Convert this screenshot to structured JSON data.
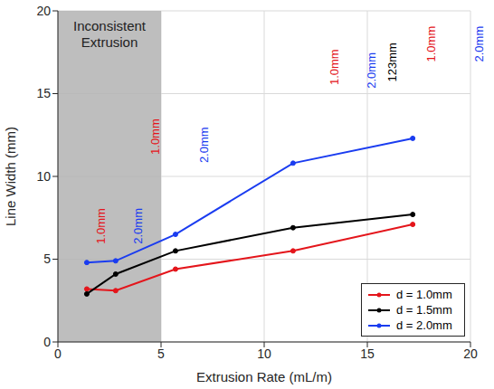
{
  "chart_data": {
    "type": "line",
    "x_label": "Extrusion Rate (mL/m)",
    "y_label": "Line Width (mm)",
    "x": [
      1.4,
      2.8,
      5.7,
      11.4,
      17.2
    ],
    "series": [
      {
        "name": "d = 1.0mm",
        "color": "#e4151b",
        "marker": "o",
        "line_style": "solid",
        "values": [
          3.2,
          3.1,
          4.4,
          5.5,
          7.1
        ]
      },
      {
        "name": "d = 1.5mm",
        "color": "#000000",
        "marker": "o",
        "line_style": "solid",
        "values": [
          2.9,
          4.1,
          5.5,
          6.9,
          7.7
        ]
      },
      {
        "name": "d = 2.0mm",
        "color": "#1a3cf0",
        "marker": "o",
        "line_style": "solid",
        "values": [
          4.8,
          4.9,
          6.5,
          10.8,
          12.3
        ]
      }
    ],
    "xlim": [
      0,
      20
    ],
    "ylim": [
      0,
      20
    ],
    "xticks": [
      0,
      5,
      10,
      15,
      20
    ],
    "yticks": [
      0,
      5,
      10,
      15,
      20
    ],
    "grid": true,
    "legend": "lower right",
    "shaded_region": {
      "x": [
        0,
        5
      ],
      "label": "Inconsistent Extrusion",
      "color": "#b3b3b3"
    },
    "annotations": [
      {
        "text": "1.0mm",
        "x": 2.1,
        "y": 7.0,
        "color": "#e4151b"
      },
      {
        "text": "2.0mm",
        "x": 3.9,
        "y": 7.0,
        "color": "#1a3cf0"
      },
      {
        "text": "1.0mm",
        "x": 4.7,
        "y": 12.4,
        "color": "#e4151b"
      },
      {
        "text": "2.0mm",
        "x": 7.1,
        "y": 11.9,
        "color": "#1a3cf0"
      },
      {
        "text": "1.0mm",
        "x": 13.4,
        "y": 16.6,
        "color": "#e4151b"
      },
      {
        "text": "2.0mm",
        "x": 15.2,
        "y": 16.4,
        "color": "#1a3cf0"
      },
      {
        "text": "123mm",
        "x": 16.2,
        "y": 16.9,
        "color": "#000000"
      },
      {
        "text": "1.0mm",
        "x": 18.1,
        "y": 18.0,
        "color": "#e4151b"
      },
      {
        "text": "2.0mm",
        "x": 20.4,
        "y": 18.0,
        "color": "#1a3cf0"
      }
    ]
  }
}
